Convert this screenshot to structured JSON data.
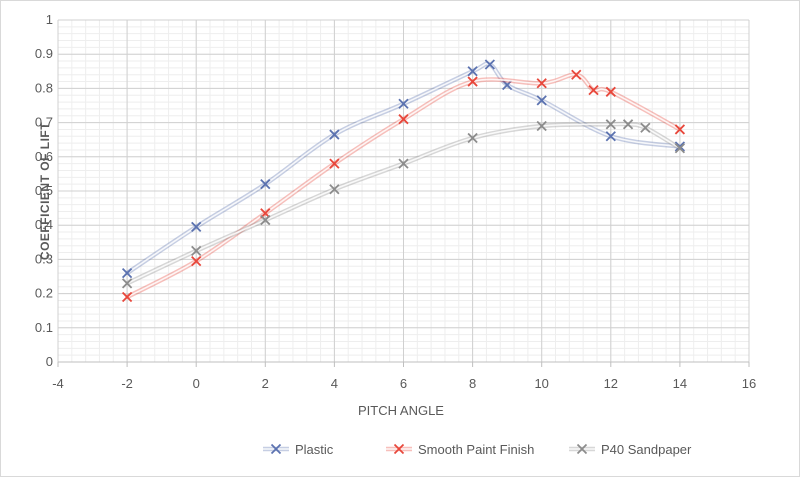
{
  "chart_data": {
    "type": "line",
    "title": "",
    "xlabel": "PITCH ANGLE",
    "ylabel": "COEFFICIENT OF LIFT",
    "xlim": [
      -4,
      16
    ],
    "ylim": [
      0,
      1
    ],
    "x_ticks": [
      -4,
      -2,
      0,
      2,
      4,
      6,
      8,
      10,
      12,
      14,
      16
    ],
    "y_ticks": [
      0,
      0.1,
      0.2,
      0.3,
      0.4,
      0.5,
      0.6,
      0.7,
      0.8,
      0.9,
      1
    ],
    "grid": true,
    "legend_position": "bottom",
    "marker": "x",
    "series": [
      {
        "name": "Plastic",
        "color": "#5b72b0",
        "x": [
          -2,
          0,
          2,
          4,
          6,
          8,
          8.5,
          9,
          10,
          12,
          14
        ],
        "y": [
          0.26,
          0.395,
          0.52,
          0.665,
          0.755,
          0.85,
          0.87,
          0.81,
          0.765,
          0.66,
          0.63
        ]
      },
      {
        "name": "Smooth Paint Finish",
        "color": "#e8473b",
        "x": [
          -2,
          0,
          2,
          4,
          6,
          8,
          10,
          11,
          11.5,
          12,
          14
        ],
        "y": [
          0.19,
          0.295,
          0.435,
          0.58,
          0.71,
          0.82,
          0.815,
          0.84,
          0.795,
          0.79,
          0.68
        ]
      },
      {
        "name": "P40 Sandpaper",
        "color": "#8c8c8c",
        "x": [
          -2,
          0,
          2,
          4,
          6,
          8,
          10,
          12,
          12.5,
          13,
          14
        ],
        "y": [
          0.23,
          0.325,
          0.415,
          0.505,
          0.58,
          0.655,
          0.69,
          0.695,
          0.695,
          0.685,
          0.625
        ]
      }
    ]
  }
}
